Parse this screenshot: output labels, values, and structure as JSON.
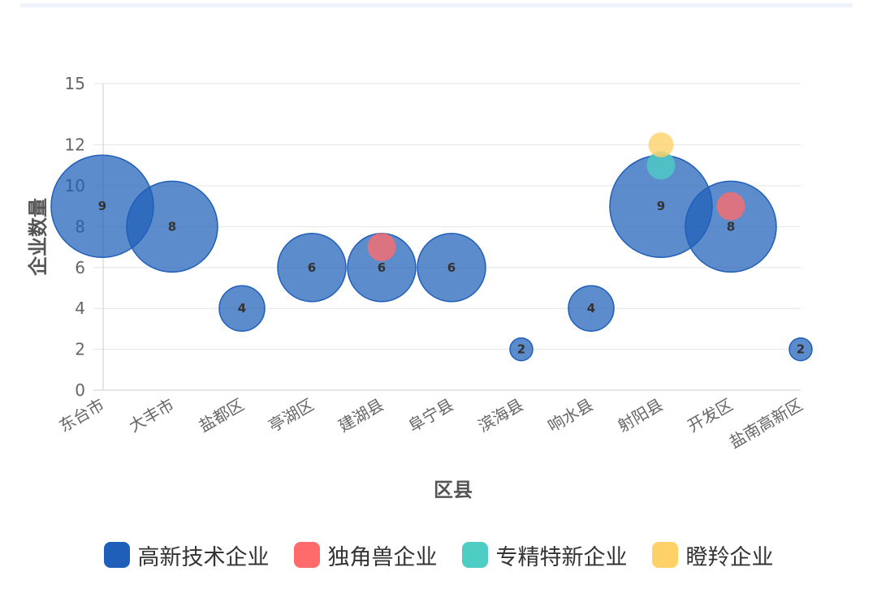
{
  "chart_data": {
    "type": "scatter",
    "variant": "bubble",
    "xlabel": "区县",
    "ylabel": "企业数量",
    "categories": [
      "东台市",
      "大丰市",
      "盐都区",
      "亭湖区",
      "建湖县",
      "阜宁县",
      "滨海县",
      "响水县",
      "射阳县",
      "开发区",
      "盐南高新区"
    ],
    "ylim": [
      0,
      15
    ],
    "yticks": [
      0,
      2,
      4,
      6,
      8,
      10,
      12,
      15
    ],
    "grid": true,
    "legend_position": "bottom",
    "series": [
      {
        "name": "高新技术企业",
        "color": "#1f5fb9",
        "points": [
          {
            "x": "东台市",
            "y": 9,
            "r": 9,
            "label": "9"
          },
          {
            "x": "大丰市",
            "y": 8,
            "r": 8,
            "label": "8"
          },
          {
            "x": "盐都区",
            "y": 4,
            "r": 4,
            "label": "4"
          },
          {
            "x": "亭湖区",
            "y": 6,
            "r": 6,
            "label": "6"
          },
          {
            "x": "建湖县",
            "y": 6,
            "r": 6,
            "label": "6"
          },
          {
            "x": "阜宁县",
            "y": 6,
            "r": 6,
            "label": "6"
          },
          {
            "x": "滨海县",
            "y": 2,
            "r": 2,
            "label": "2"
          },
          {
            "x": "响水县",
            "y": 4,
            "r": 4,
            "label": "4"
          },
          {
            "x": "射阳县",
            "y": 9,
            "r": 9,
            "label": "9"
          },
          {
            "x": "开发区",
            "y": 8,
            "r": 8,
            "label": "8"
          },
          {
            "x": "盐南高新区",
            "y": 2,
            "r": 2,
            "label": "2"
          }
        ]
      },
      {
        "name": "独角兽企业",
        "color": "#ff6b6b",
        "points": [
          {
            "x": "建湖县",
            "y": 7,
            "r": 2.5
          },
          {
            "x": "开发区",
            "y": 9,
            "r": 2.5
          }
        ]
      },
      {
        "name": "专精特新企业",
        "color": "#4ecdc4",
        "points": [
          {
            "x": "射阳县",
            "y": 11,
            "r": 2.5
          }
        ]
      },
      {
        "name": "瞪羚企业",
        "color": "#ffd166",
        "points": [
          {
            "x": "射阳县",
            "y": 12,
            "r": 2.2
          }
        ]
      }
    ]
  }
}
